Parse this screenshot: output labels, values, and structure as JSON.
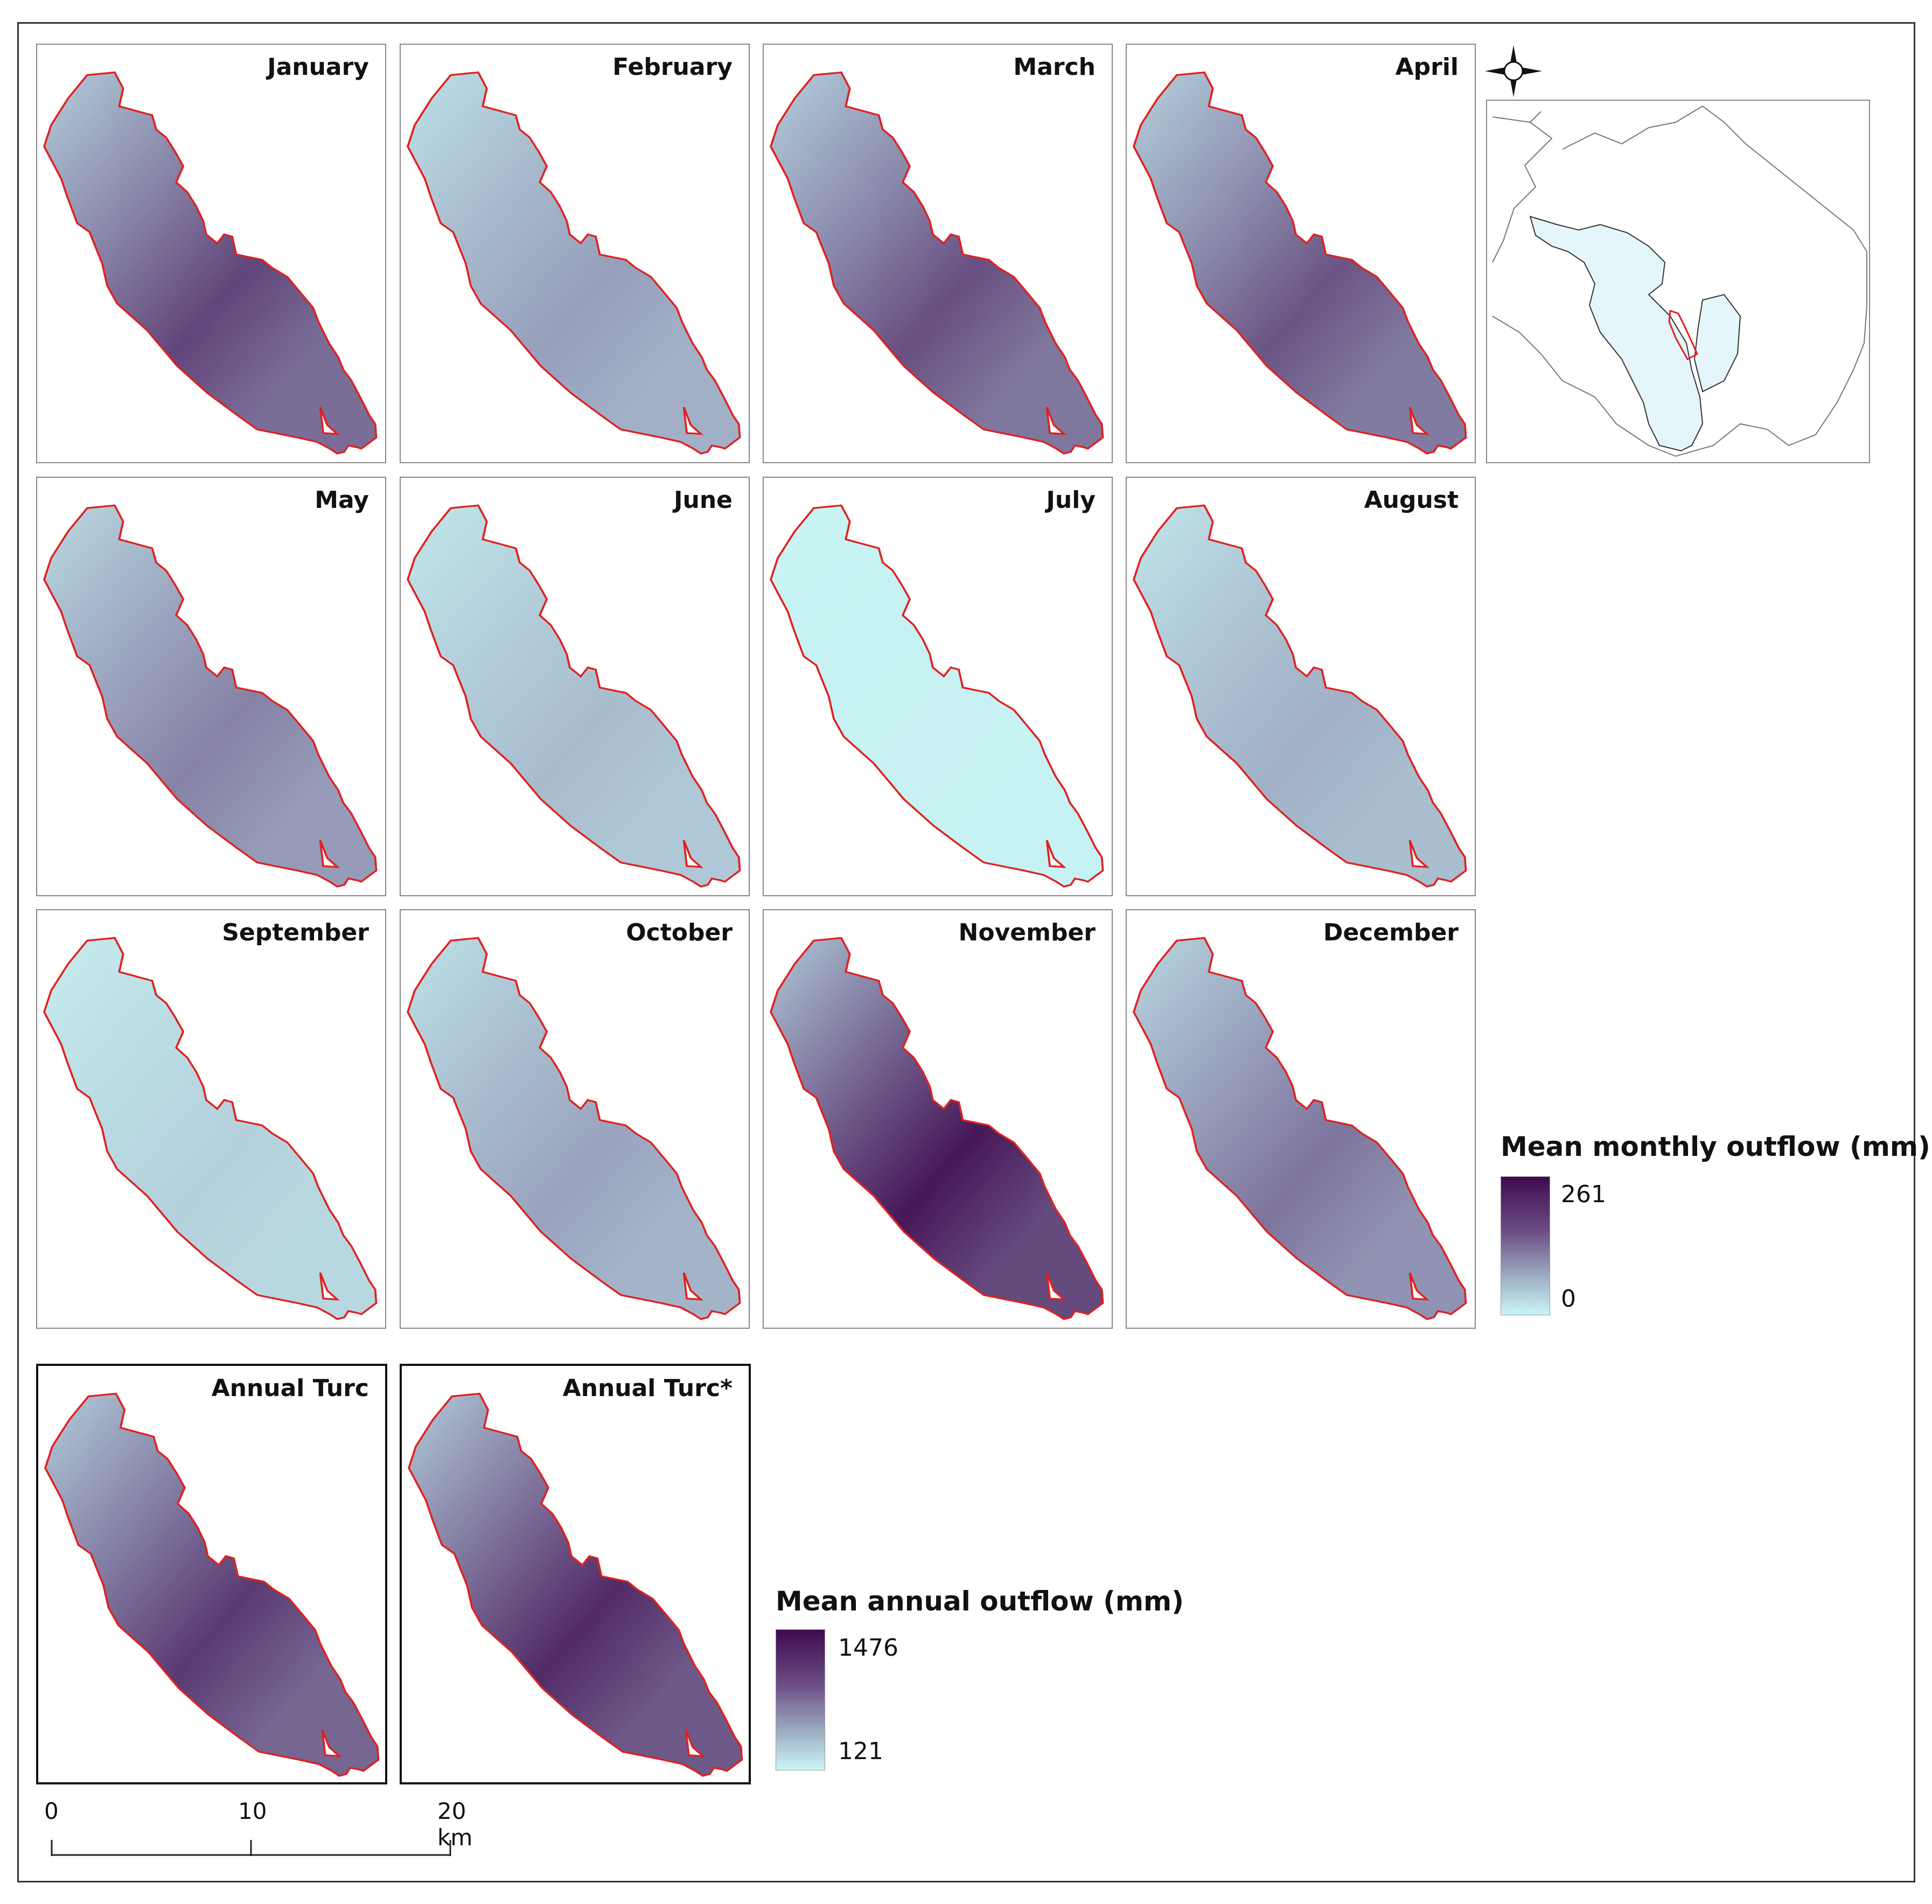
{
  "monthly_panels": [
    {
      "label": "January",
      "shade": 0.78
    },
    {
      "label": "February",
      "shade": 0.42
    },
    {
      "label": "March",
      "shade": 0.74
    },
    {
      "label": "April",
      "shade": 0.72
    },
    {
      "label": "May",
      "shade": 0.55
    },
    {
      "label": "June",
      "shade": 0.28
    },
    {
      "label": "July",
      "shade": 0.02
    },
    {
      "label": "August",
      "shade": 0.34
    },
    {
      "label": "September",
      "shade": 0.18
    },
    {
      "label": "October",
      "shade": 0.4
    },
    {
      "label": "November",
      "shade": 0.95
    },
    {
      "label": "December",
      "shade": 0.6
    }
  ],
  "annual_panels": [
    {
      "label": "Annual Turc",
      "shade": 0.82
    },
    {
      "label": "Annual Turc*",
      "shade": 0.88
    }
  ],
  "monthly_legend": {
    "title": "Mean monthly outflow (mm)",
    "max": "261",
    "min": "0"
  },
  "annual_legend": {
    "title": "Mean annual outflow (mm)",
    "max": "1476",
    "min": "121"
  },
  "scale_bar": {
    "labels": [
      "0",
      "10",
      "20 km"
    ]
  },
  "colors": {
    "low": "#c9f5f5",
    "mid": "#8e8fb0",
    "high": "#3f0a4f",
    "outline": "#e02020"
  },
  "icons": {
    "north": "compass-rose-icon"
  }
}
